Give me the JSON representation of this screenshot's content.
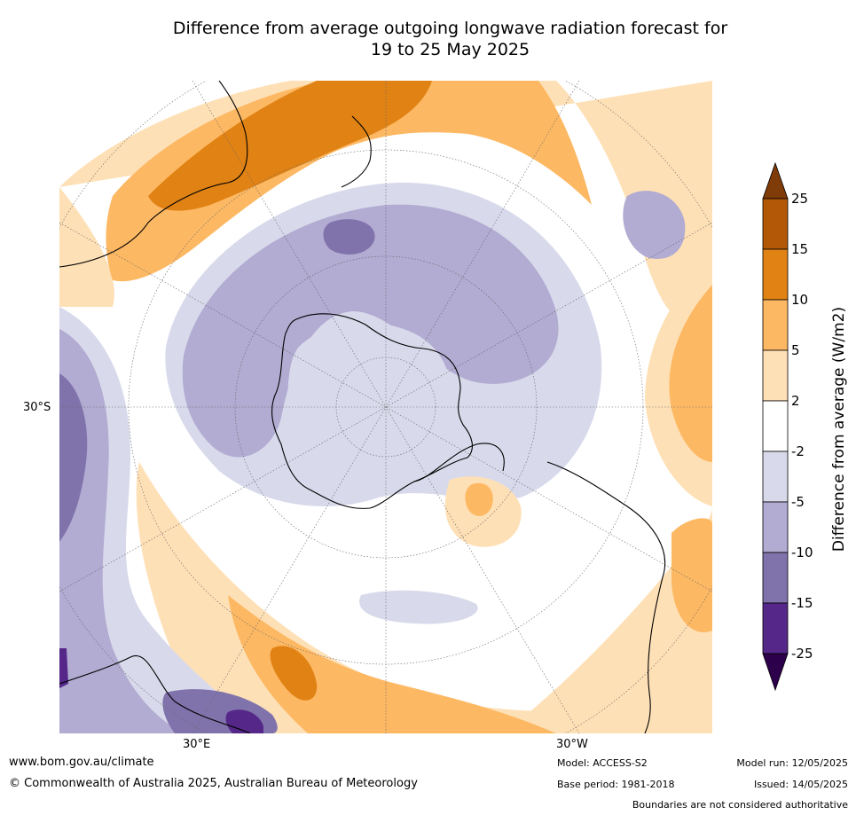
{
  "title": {
    "line1": "Difference from average outgoing longwave radiation forecast for",
    "line2": "19 to 25 May 2025"
  },
  "map": {
    "projection": "south polar stereographic",
    "lat_label": "30°S",
    "lon_labels": [
      "30°E",
      "30°W"
    ]
  },
  "colorbar": {
    "label": "Difference from average (W/m2)",
    "ticks": [
      "25",
      "15",
      "10",
      "5",
      "2",
      "-2",
      "-5",
      "-10",
      "-15",
      "-25"
    ],
    "colors": {
      "above_25": "#7f3b08",
      "15_to_25": "#b35806",
      "10_to_15": "#e08214",
      "5_to_10": "#fdb863",
      "2_to_5": "#fee0b6",
      "neutral": "#ffffff",
      "m5_to_m2": "#d8daeb",
      "m10_to_m5": "#b2abd2",
      "m15_to_m10": "#8073ac",
      "m25_to_m15": "#542788",
      "below_m25": "#2d004b"
    }
  },
  "footer": {
    "website": "www.bom.gov.au/climate",
    "copyright": "© Commonwealth of Australia 2025, Australian Bureau of Meteorology",
    "model": "Model: ACCESS-S2",
    "base_period": "Base period: 1981-2018",
    "model_run": "Model run: 12/05/2025",
    "issued": "Issued: 14/05/2025",
    "disclaimer": "Boundaries are not considered authoritative"
  }
}
